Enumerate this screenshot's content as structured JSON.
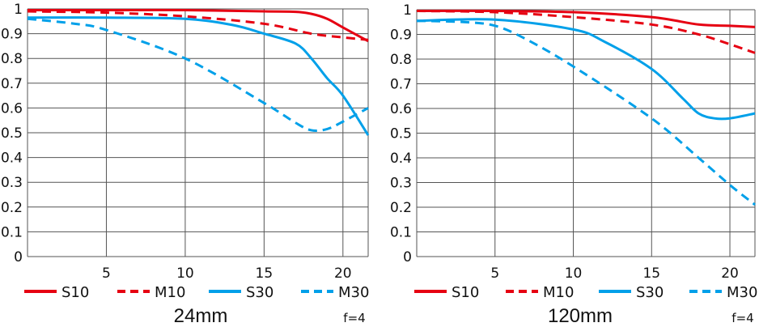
{
  "colors": {
    "red": "#e60012",
    "blue": "#00a0e9",
    "grid": "#555555"
  },
  "chart_data": [
    {
      "type": "line",
      "title": "24mm",
      "aperture": "f=4",
      "xlim": [
        0,
        21.6
      ],
      "ylim": [
        0,
        1
      ],
      "xticks": [
        "5",
        "10",
        "15",
        "20"
      ],
      "yticks": [
        "0",
        "0.1",
        "0.2",
        "0.3",
        "0.4",
        "0.5",
        "0.6",
        "0.7",
        "0.8",
        "0.9",
        "1"
      ],
      "grid": true,
      "legend_position": "bottom",
      "series": [
        {
          "name": "S10",
          "color": "red",
          "dash": false,
          "x": [
            0,
            5,
            10,
            15,
            17,
            18,
            19,
            20,
            21.6
          ],
          "y": [
            0.995,
            0.995,
            0.995,
            0.99,
            0.988,
            0.98,
            0.96,
            0.925,
            0.87
          ]
        },
        {
          "name": "M10",
          "color": "red",
          "dash": true,
          "x": [
            0,
            5,
            10,
            15,
            18,
            20,
            21.6
          ],
          "y": [
            0.99,
            0.985,
            0.97,
            0.94,
            0.9,
            0.885,
            0.875
          ]
        },
        {
          "name": "S30",
          "color": "blue",
          "dash": false,
          "x": [
            0,
            5,
            10,
            13,
            15,
            17,
            18,
            19,
            20,
            21.6
          ],
          "y": [
            0.965,
            0.965,
            0.96,
            0.935,
            0.9,
            0.86,
            0.8,
            0.72,
            0.65,
            0.49
          ]
        },
        {
          "name": "M30",
          "color": "blue",
          "dash": true,
          "x": [
            0,
            3,
            5,
            10,
            15,
            17,
            18,
            19,
            20,
            21.6
          ],
          "y": [
            0.96,
            0.94,
            0.915,
            0.8,
            0.62,
            0.54,
            0.51,
            0.515,
            0.545,
            0.6
          ]
        }
      ]
    },
    {
      "type": "line",
      "title": "120mm",
      "aperture": "f=4",
      "xlim": [
        0,
        21.6
      ],
      "ylim": [
        0,
        1
      ],
      "xticks": [
        "5",
        "10",
        "15",
        "20"
      ],
      "yticks": [
        "0",
        "0.1",
        "0.2",
        "0.3",
        "0.4",
        "0.5",
        "0.6",
        "0.7",
        "0.8",
        "0.9",
        "1"
      ],
      "grid": true,
      "legend_position": "bottom",
      "series": [
        {
          "name": "S10",
          "color": "red",
          "dash": false,
          "x": [
            0,
            5,
            10,
            15,
            18,
            20,
            21.6
          ],
          "y": [
            0.995,
            0.995,
            0.99,
            0.97,
            0.94,
            0.935,
            0.93
          ]
        },
        {
          "name": "M10",
          "color": "red",
          "dash": true,
          "x": [
            0,
            5,
            10,
            15,
            18,
            20,
            21.6
          ],
          "y": [
            0.995,
            0.99,
            0.97,
            0.94,
            0.9,
            0.86,
            0.825
          ]
        },
        {
          "name": "S30",
          "color": "blue",
          "dash": false,
          "x": [
            0,
            5,
            10,
            12,
            15,
            17,
            18,
            19,
            20,
            21.6
          ],
          "y": [
            0.955,
            0.96,
            0.92,
            0.87,
            0.76,
            0.64,
            0.58,
            0.56,
            0.56,
            0.58
          ]
        },
        {
          "name": "M30",
          "color": "blue",
          "dash": true,
          "x": [
            0,
            3,
            5,
            7,
            10,
            15,
            18,
            20,
            21.6
          ],
          "y": [
            0.955,
            0.95,
            0.935,
            0.88,
            0.77,
            0.56,
            0.4,
            0.29,
            0.21
          ]
        }
      ]
    }
  ]
}
